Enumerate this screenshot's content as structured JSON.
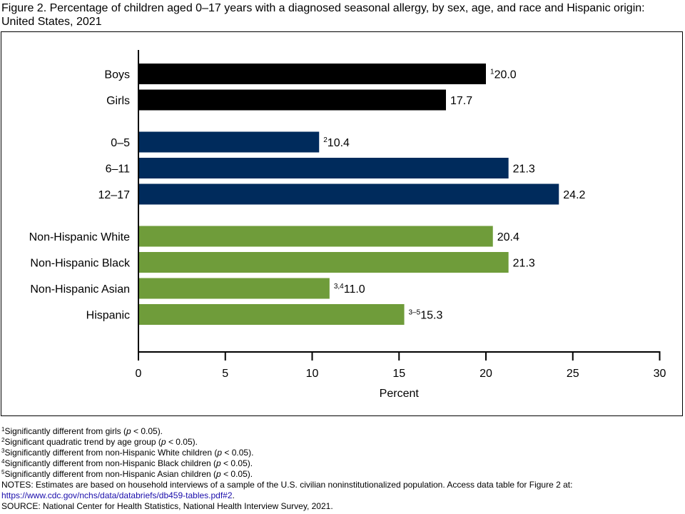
{
  "title": "Figure 2. Percentage of children aged 0–17 years with a diagnosed seasonal allergy, by sex, age, and race and Hispanic origin: United States, 2021",
  "colors": {
    "sex": "#000000",
    "age": "#002b5c",
    "race": "#6f9c3a"
  },
  "chart_data": {
    "type": "bar",
    "orientation": "horizontal",
    "xlabel": "Percent",
    "xlim": [
      0,
      30
    ],
    "xticks": [
      0,
      5,
      10,
      15,
      20,
      25,
      30
    ],
    "grid": false,
    "legend": "none",
    "groups": [
      {
        "color_key": "sex",
        "bars": [
          {
            "category": "Boys",
            "value": 20.0,
            "label": "20.0",
            "note": "1"
          },
          {
            "category": "Girls",
            "value": 17.7,
            "label": "17.7",
            "note": ""
          }
        ]
      },
      {
        "color_key": "age",
        "bars": [
          {
            "category": "0–5",
            "value": 10.4,
            "label": "10.4",
            "note": "2"
          },
          {
            "category": "6–11",
            "value": 21.3,
            "label": "21.3",
            "note": ""
          },
          {
            "category": "12–17",
            "value": 24.2,
            "label": "24.2",
            "note": ""
          }
        ]
      },
      {
        "color_key": "race",
        "bars": [
          {
            "category": "Non-Hispanic White",
            "value": 20.4,
            "label": "20.4",
            "note": ""
          },
          {
            "category": "Non-Hispanic Black",
            "value": 21.3,
            "label": "21.3",
            "note": ""
          },
          {
            "category": "Non-Hispanic Asian",
            "value": 11.0,
            "label": "11.0",
            "note": "3,4"
          },
          {
            "category": "Hispanic",
            "value": 15.3,
            "label": "15.3",
            "note": "3–5"
          }
        ]
      }
    ]
  },
  "footnotes": [
    {
      "mark": "1",
      "text_before": "Significantly different from girls (",
      "p": "p",
      "text_after": " < 0.05)."
    },
    {
      "mark": "2",
      "text_before": "Significant quadratic trend by age group (",
      "p": "p",
      "text_after": " < 0.05)."
    },
    {
      "mark": "3",
      "text_before": "Significantly different from non-Hispanic White children (",
      "p": "p",
      "text_after": " < 0.05)."
    },
    {
      "mark": "4",
      "text_before": "Significantly different from non-Hispanic Black children (",
      "p": "p",
      "text_after": " < 0.05)."
    },
    {
      "mark": "5",
      "text_before": "Significantly different from non-Hispanic Asian children (",
      "p": "p",
      "text_after": " < 0.05)."
    }
  ],
  "notes": {
    "text": "NOTES: Estimates are based on household interviews of a sample of the U.S. civilian noninstitutionalized population. Access data table for Figure 2 at:",
    "link": "https://www.cdc.gov/nchs/data/databriefs/db459-tables.pdf#2",
    "link_suffix": "."
  },
  "source": "SOURCE: National Center for Health Statistics, National Health Interview Survey, 2021."
}
